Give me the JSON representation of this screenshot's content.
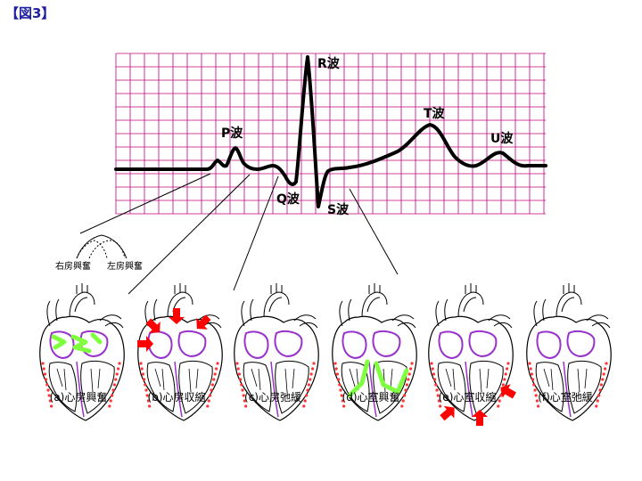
{
  "figure_title": "【図3】",
  "waves": {
    "p": "P波",
    "q": "Q波",
    "r": "R波",
    "s": "S波",
    "t": "T波",
    "u": "U波"
  },
  "atrial_labels": {
    "right": "右房興奮",
    "left": "左房興奮"
  },
  "panels": [
    {
      "caption": "(a)心房興奮"
    },
    {
      "caption": "(b)心房収縮"
    },
    {
      "caption": "(c)心房弛緩"
    },
    {
      "caption": "(d)心室興奮"
    },
    {
      "caption": "(e)心室収縮"
    },
    {
      "caption": "(f)心室弛緩"
    }
  ],
  "colors": {
    "grid": "#c0007a",
    "ecg": "#000000",
    "excitation": "#80ff40",
    "contraction_arrow": "#ff0000",
    "chamber_outline": "#9933cc",
    "myocardium_dots": "#ff3333",
    "title": "#1f1fa0"
  }
}
